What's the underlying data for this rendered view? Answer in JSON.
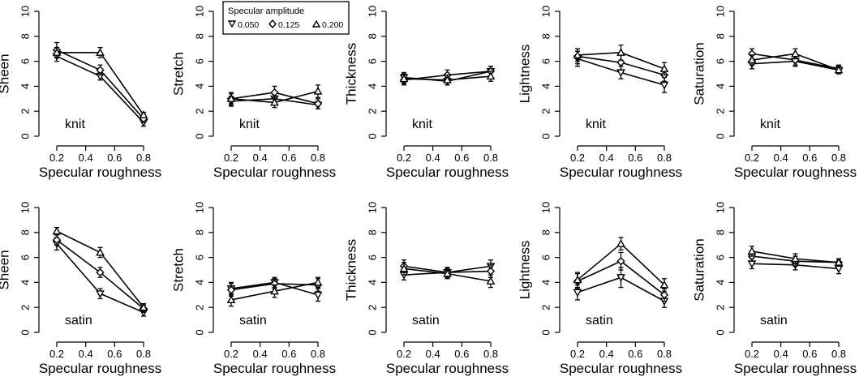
{
  "legend": {
    "title": "Specular amplitude",
    "entries": [
      {
        "label": "0.050",
        "marker": "triangle-down"
      },
      {
        "label": "0.125",
        "marker": "diamond"
      },
      {
        "label": "0.200",
        "marker": "triangle-up"
      }
    ],
    "placement": "top, over second panel of first row"
  },
  "chart_data": [
    {
      "type": "line",
      "fabric": "knit",
      "ylabel": "Sheen",
      "xlabel": "Specular roughness",
      "x": [
        0.2,
        0.5,
        0.8
      ],
      "xticks": [
        "0.2",
        "0.4",
        "0.6",
        "0.8"
      ],
      "yticks": [
        "0",
        "2",
        "4",
        "6",
        "8",
        "10"
      ],
      "ylim": [
        0,
        10
      ],
      "series": [
        {
          "name": "0.050",
          "values": [
            6.4,
            4.8,
            1.1
          ],
          "err": [
            0.4,
            0.3,
            0.3
          ]
        },
        {
          "name": "0.125",
          "values": [
            6.9,
            5.3,
            1.4
          ],
          "err": [
            0.6,
            0.4,
            0.3
          ]
        },
        {
          "name": "0.200",
          "values": [
            6.7,
            6.7,
            1.7
          ],
          "err": [
            0.4,
            0.4,
            0.2
          ]
        }
      ]
    },
    {
      "type": "line",
      "fabric": "knit",
      "ylabel": "Stretch",
      "xlabel": "Specular roughness",
      "x": [
        0.2,
        0.5,
        0.8
      ],
      "xticks": [
        "0.2",
        "0.4",
        "0.6",
        "0.8"
      ],
      "yticks": [
        "0",
        "2",
        "4",
        "6",
        "8",
        "10"
      ],
      "ylim": [
        0,
        10
      ],
      "series": [
        {
          "name": "0.050",
          "values": [
            2.8,
            3.0,
            2.5
          ],
          "err": [
            0.4,
            0.4,
            0.3
          ]
        },
        {
          "name": "0.125",
          "values": [
            3.0,
            3.5,
            2.6
          ],
          "err": [
            0.5,
            0.5,
            0.4
          ]
        },
        {
          "name": "0.200",
          "values": [
            3.0,
            2.7,
            3.6
          ],
          "err": [
            0.4,
            0.4,
            0.5
          ]
        }
      ]
    },
    {
      "type": "line",
      "fabric": "knit",
      "ylabel": "Thickness",
      "xlabel": "Specular roughness",
      "x": [
        0.2,
        0.5,
        0.8
      ],
      "xticks": [
        "0.2",
        "0.4",
        "0.6",
        "0.8"
      ],
      "yticks": [
        "0",
        "2",
        "4",
        "6",
        "8",
        "10"
      ],
      "ylim": [
        0,
        10
      ],
      "series": [
        {
          "name": "0.050",
          "values": [
            4.7,
            4.4,
            5.2
          ],
          "err": [
            0.4,
            0.3,
            0.4
          ]
        },
        {
          "name": "0.125",
          "values": [
            4.5,
            4.9,
            5.2
          ],
          "err": [
            0.4,
            0.4,
            0.4
          ]
        },
        {
          "name": "0.200",
          "values": [
            4.6,
            4.5,
            4.8
          ],
          "err": [
            0.4,
            0.4,
            0.4
          ]
        }
      ]
    },
    {
      "type": "line",
      "fabric": "knit",
      "ylabel": "Lightness",
      "xlabel": "Specular roughness",
      "x": [
        0.2,
        0.5,
        0.8
      ],
      "xticks": [
        "0.2",
        "0.4",
        "0.6",
        "0.8"
      ],
      "yticks": [
        "0",
        "2",
        "4",
        "6",
        "8",
        "10"
      ],
      "ylim": [
        0,
        10
      ],
      "series": [
        {
          "name": "0.050",
          "values": [
            6.2,
            5.1,
            4.1
          ],
          "err": [
            0.6,
            0.5,
            0.6
          ]
        },
        {
          "name": "0.125",
          "values": [
            6.4,
            5.9,
            4.9
          ],
          "err": [
            0.6,
            0.6,
            0.5
          ]
        },
        {
          "name": "0.200",
          "values": [
            6.5,
            6.7,
            5.4
          ],
          "err": [
            0.5,
            0.6,
            0.5
          ]
        }
      ]
    },
    {
      "type": "line",
      "fabric": "knit",
      "ylabel": "Saturation",
      "xlabel": "Specular roughness",
      "x": [
        0.2,
        0.5,
        0.8
      ],
      "xticks": [
        "0.2",
        "0.4",
        "0.6",
        "0.8"
      ],
      "yticks": [
        "0",
        "2",
        "4",
        "6",
        "8",
        "10"
      ],
      "ylim": [
        0,
        10
      ],
      "series": [
        {
          "name": "0.050",
          "values": [
            5.8,
            6.0,
            5.3
          ],
          "err": [
            0.4,
            0.4,
            0.3
          ]
        },
        {
          "name": "0.125",
          "values": [
            6.6,
            6.1,
            5.4
          ],
          "err": [
            0.4,
            0.4,
            0.3
          ]
        },
        {
          "name": "0.200",
          "values": [
            6.1,
            6.6,
            5.3
          ],
          "err": [
            0.4,
            0.4,
            0.3
          ]
        }
      ]
    },
    {
      "type": "line",
      "fabric": "satin",
      "ylabel": "Sheen",
      "xlabel": "Specular roughness",
      "x": [
        0.2,
        0.5,
        0.8
      ],
      "xticks": [
        "0.2",
        "0.4",
        "0.6",
        "0.8"
      ],
      "yticks": [
        "0",
        "2",
        "4",
        "6",
        "8",
        "10"
      ],
      "ylim": [
        0,
        10
      ],
      "series": [
        {
          "name": "0.050",
          "values": [
            7.1,
            3.1,
            1.6
          ],
          "err": [
            0.5,
            0.4,
            0.3
          ]
        },
        {
          "name": "0.125",
          "values": [
            7.4,
            4.8,
            1.9
          ],
          "err": [
            0.4,
            0.4,
            0.3
          ]
        },
        {
          "name": "0.200",
          "values": [
            8.1,
            6.4,
            2.0
          ],
          "err": [
            0.3,
            0.4,
            0.3
          ]
        }
      ]
    },
    {
      "type": "line",
      "fabric": "satin",
      "ylabel": "Stretch",
      "xlabel": "Specular roughness",
      "x": [
        0.2,
        0.5,
        0.8
      ],
      "xticks": [
        "0.2",
        "0.4",
        "0.6",
        "0.8"
      ],
      "yticks": [
        "0",
        "2",
        "4",
        "6",
        "8",
        "10"
      ],
      "ylim": [
        0,
        10
      ],
      "series": [
        {
          "name": "0.050",
          "values": [
            3.5,
            4.0,
            3.0
          ],
          "err": [
            0.5,
            0.4,
            0.5
          ]
        },
        {
          "name": "0.125",
          "values": [
            3.4,
            3.9,
            3.8
          ],
          "err": [
            0.5,
            0.4,
            0.5
          ]
        },
        {
          "name": "0.200",
          "values": [
            2.6,
            3.3,
            4.0
          ],
          "err": [
            0.5,
            0.5,
            0.4
          ]
        }
      ]
    },
    {
      "type": "line",
      "fabric": "satin",
      "ylabel": "Thickness",
      "xlabel": "Specular roughness",
      "x": [
        0.2,
        0.5,
        0.8
      ],
      "xticks": [
        "0.2",
        "0.4",
        "0.6",
        "0.8"
      ],
      "yticks": [
        "0",
        "2",
        "4",
        "6",
        "8",
        "10"
      ],
      "ylim": [
        0,
        10
      ],
      "series": [
        {
          "name": "0.050",
          "values": [
            4.6,
            4.8,
            5.3
          ],
          "err": [
            0.4,
            0.4,
            0.5
          ]
        },
        {
          "name": "0.125",
          "values": [
            5.3,
            4.8,
            4.9
          ],
          "err": [
            0.5,
            0.4,
            0.5
          ]
        },
        {
          "name": "0.200",
          "values": [
            5.1,
            4.7,
            4.1
          ],
          "err": [
            0.5,
            0.4,
            0.5
          ]
        }
      ]
    },
    {
      "type": "line",
      "fabric": "satin",
      "ylabel": "Lightness",
      "xlabel": "Specular roughness",
      "x": [
        0.2,
        0.5,
        0.8
      ],
      "xticks": [
        "0.2",
        "0.4",
        "0.6",
        "0.8"
      ],
      "yticks": [
        "0",
        "2",
        "4",
        "6",
        "8",
        "10"
      ],
      "ylim": [
        0,
        10
      ],
      "series": [
        {
          "name": "0.050",
          "values": [
            3.2,
            4.4,
            2.5
          ],
          "err": [
            0.6,
            0.8,
            0.5
          ]
        },
        {
          "name": "0.125",
          "values": [
            4.1,
            5.7,
            3.0
          ],
          "err": [
            0.6,
            0.7,
            0.5
          ]
        },
        {
          "name": "0.200",
          "values": [
            4.2,
            7.1,
            3.8
          ],
          "err": [
            0.6,
            0.5,
            0.5
          ]
        }
      ]
    },
    {
      "type": "line",
      "fabric": "satin",
      "ylabel": "Saturation",
      "xlabel": "Specular roughness",
      "x": [
        0.2,
        0.5,
        0.8
      ],
      "xticks": [
        "0.2",
        "0.4",
        "0.6",
        "0.8"
      ],
      "yticks": [
        "0",
        "2",
        "4",
        "6",
        "8",
        "10"
      ],
      "ylim": [
        0,
        10
      ],
      "series": [
        {
          "name": "0.050",
          "values": [
            5.5,
            5.4,
            5.1
          ],
          "err": [
            0.4,
            0.4,
            0.4
          ]
        },
        {
          "name": "0.125",
          "values": [
            6.1,
            5.7,
            5.6
          ],
          "err": [
            0.4,
            0.4,
            0.3
          ]
        },
        {
          "name": "0.200",
          "values": [
            6.5,
            5.9,
            5.6
          ],
          "err": [
            0.4,
            0.4,
            0.3
          ]
        }
      ]
    }
  ]
}
